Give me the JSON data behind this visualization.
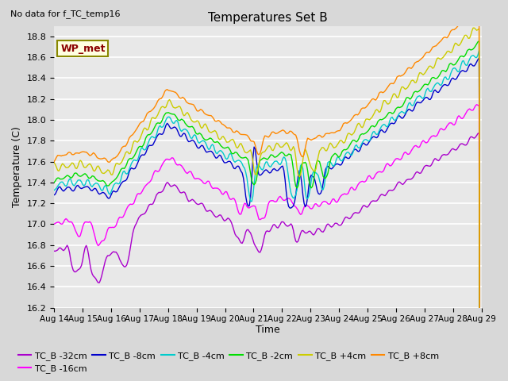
{
  "title": "Temperatures Set B",
  "subtitle": "No data for f_TC_temp16",
  "xlabel": "Time",
  "ylabel": "Temperature (C)",
  "ylim": [
    16.2,
    18.9
  ],
  "x_tick_labels": [
    "Aug 14",
    "Aug 15",
    "Aug 16",
    "Aug 17",
    "Aug 18",
    "Aug 19",
    "Aug 20",
    "Aug 21",
    "Aug 22",
    "Aug 23",
    "Aug 24",
    "Aug 25",
    "Aug 26",
    "Aug 27",
    "Aug 28",
    "Aug 29"
  ],
  "series": [
    {
      "label": "TC_B -32cm",
      "color": "#aa00cc"
    },
    {
      "label": "TC_B -16cm",
      "color": "#ff00ff"
    },
    {
      "label": "TC_B -8cm",
      "color": "#0000cc"
    },
    {
      "label": "TC_B -4cm",
      "color": "#00cccc"
    },
    {
      "label": "TC_B -2cm",
      "color": "#00dd00"
    },
    {
      "label": "TC_B +4cm",
      "color": "#cccc00"
    },
    {
      "label": "TC_B +8cm",
      "color": "#ff8800"
    }
  ],
  "bg_color": "#d8d8d8",
  "plot_bg_color": "#e8e8e8",
  "grid_color": "#ffffff"
}
